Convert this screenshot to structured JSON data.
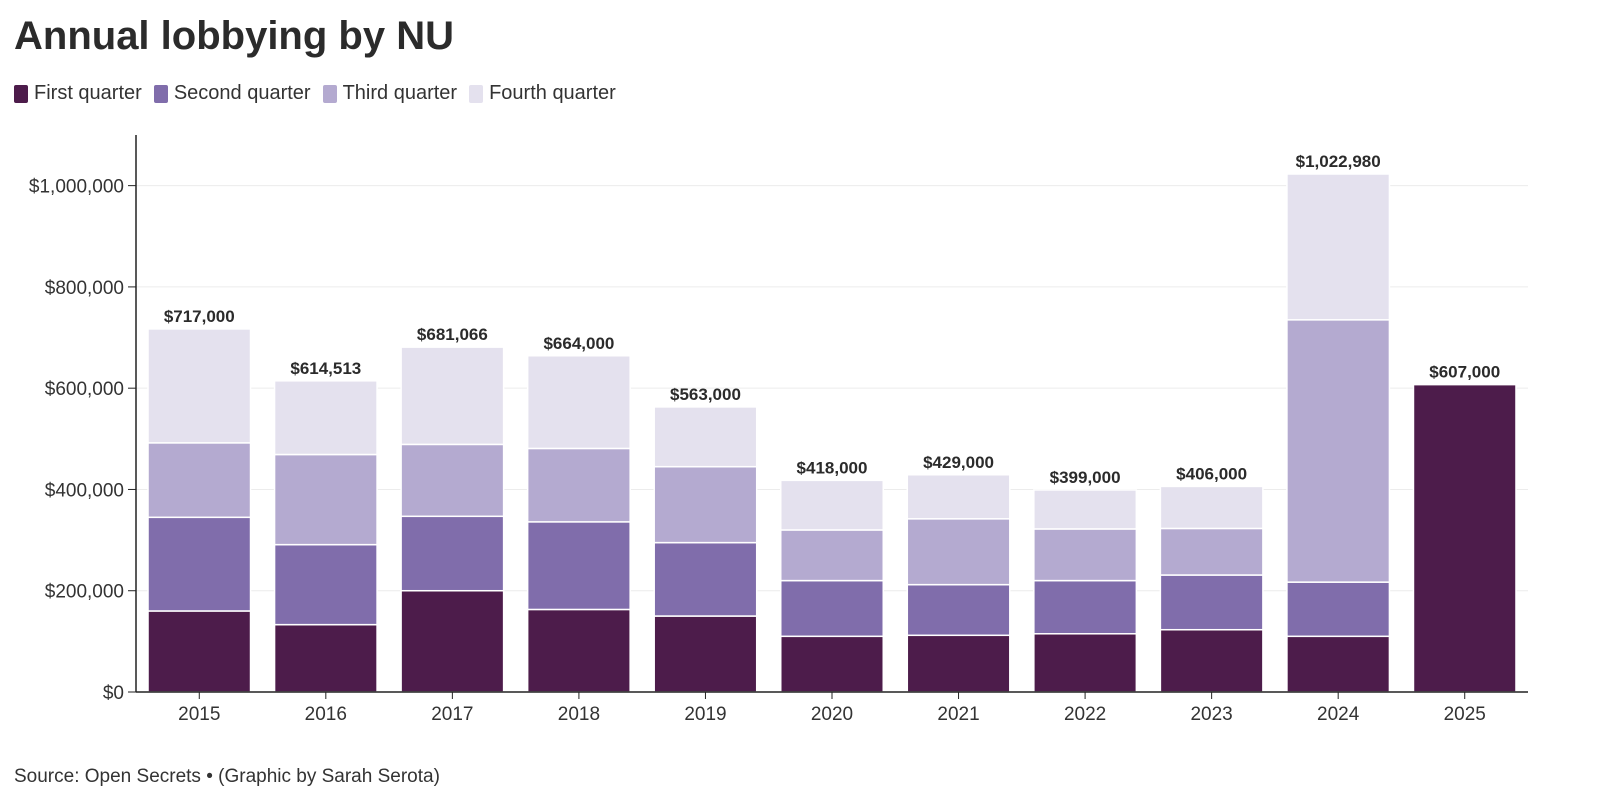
{
  "chart_data": {
    "type": "bar",
    "stacked": true,
    "title": "Annual lobbying by NU",
    "categories": [
      "2015",
      "2016",
      "2017",
      "2018",
      "2019",
      "2020",
      "2021",
      "2022",
      "2023",
      "2024",
      "2025"
    ],
    "series": [
      {
        "name": "First quarter",
        "color": "#4d1c4b",
        "values": [
          160000,
          133000,
          200000,
          163000,
          150000,
          110000,
          112000,
          115000,
          123000,
          110000,
          607000
        ]
      },
      {
        "name": "Second quarter",
        "color": "#806dab",
        "values": [
          185000,
          158000,
          147000,
          173000,
          145000,
          110000,
          100000,
          105000,
          108000,
          107000,
          0
        ]
      },
      {
        "name": "Third quarter",
        "color": "#b4aad0",
        "values": [
          147000,
          178000,
          142000,
          145000,
          150000,
          100000,
          130000,
          102000,
          92000,
          518000,
          0
        ]
      },
      {
        "name": "Fourth quarter",
        "color": "#e4e1ee",
        "values": [
          225000,
          145513,
          192066,
          183000,
          118000,
          98000,
          87000,
          77000,
          83000,
          287980,
          0
        ]
      }
    ],
    "totals": [
      "$717,000",
      "$614,513",
      "$681,066",
      "$664,000",
      "$563,000",
      "$418,000",
      "$429,000",
      "$399,000",
      "$406,000",
      "$1,022,980",
      "$607,000"
    ],
    "total_values": [
      717000,
      614513,
      681066,
      664000,
      563000,
      418000,
      429000,
      399000,
      406000,
      1022980,
      607000
    ],
    "ylim": [
      0,
      1100000
    ],
    "yticks": [
      0,
      200000,
      400000,
      600000,
      800000,
      1000000
    ],
    "ytick_labels": [
      "$0",
      "$200,000",
      "$400,000",
      "$600,000",
      "$800,000",
      "$1,000,000"
    ],
    "xlabel": "",
    "ylabel": "",
    "legend_position": "top-left",
    "grid": true
  },
  "legend": {
    "items": [
      {
        "label": "First quarter",
        "color": "#4d1c4b"
      },
      {
        "label": "Second quarter",
        "color": "#806dab"
      },
      {
        "label": "Third quarter",
        "color": "#b4aad0"
      },
      {
        "label": "Fourth quarter",
        "color": "#e4e1ee"
      }
    ]
  },
  "source": "Source: Open Secrets • (Graphic by Sarah Serota)"
}
